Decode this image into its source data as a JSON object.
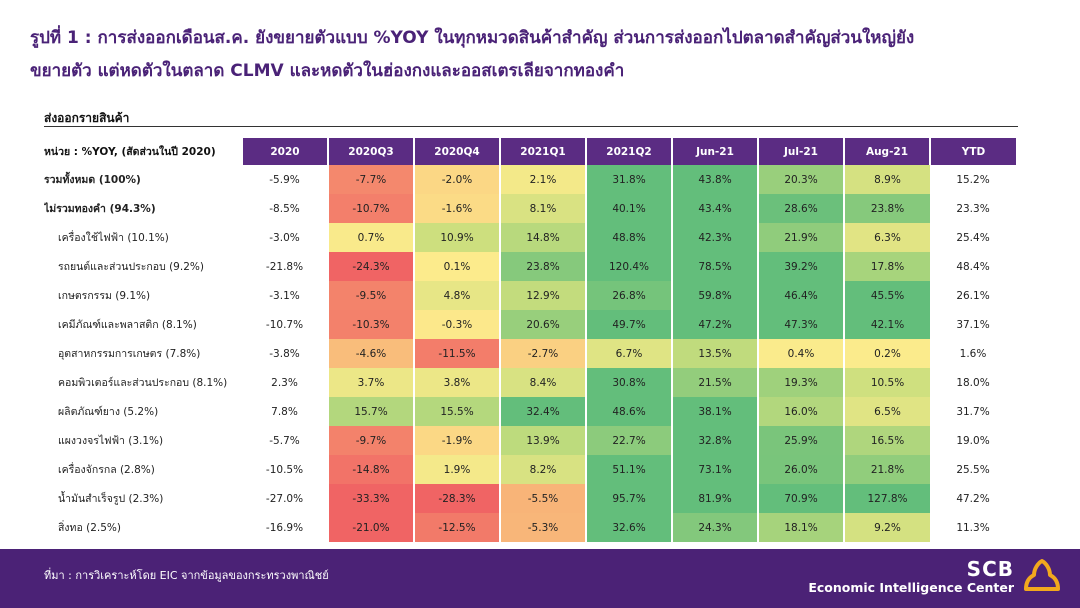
{
  "title": {
    "line1": "รูปที่ 1 : การส่งออกเดือนส.ค. ยังขยายตัวแบบ %YOY ในทุกหมวดสินค้าสำคัญ ส่วนการส่งออกไปตลาดสำคัญส่วนใหญ่ยัง",
    "line2": "ขยายตัว แต่หดตัวในตลาด CLMV และหดตัวในฮ่องกงและออสเตรเลียจากทองคำ"
  },
  "section_label": "ส่งออกรายสินค้า",
  "footer": {
    "source": "ที่มา : การวิเคราะห์โดย EIC จากข้อมูลของกระทรวงพาณิชย์",
    "brand_name": "SCB",
    "brand_sub": "Economic Intelligence Center"
  },
  "colors": {
    "header": "#5b2c83",
    "footer": "#4b2276",
    "title": "#4a2277",
    "logo": "#f2a81d"
  },
  "chart_data": {
    "type": "table",
    "unit_label": "หน่วย : %YOY, (สัดส่วนในปี 2020)",
    "columns": [
      "2020",
      "2020Q3",
      "2020Q4",
      "2021Q1",
      "2021Q2",
      "Jun-21",
      "Jul-21",
      "Aug-21",
      "YTD"
    ],
    "heatmap_columns": [
      "2020Q3",
      "2020Q4",
      "2021Q1",
      "2021Q2",
      "Jun-21",
      "Jul-21",
      "Aug-21"
    ],
    "rows": [
      {
        "label": "รวมทั้งหมด (100%)",
        "bold": true,
        "values": [
          -5.9,
          -7.7,
          -2.0,
          2.1,
          31.8,
          43.8,
          20.3,
          8.9,
          15.2
        ]
      },
      {
        "label": "ไม่รวมทองคำ (94.3%)",
        "bold": true,
        "values": [
          -8.5,
          -10.7,
          -1.6,
          8.1,
          40.1,
          43.4,
          28.6,
          23.8,
          23.3
        ]
      },
      {
        "label": "เครื่องใช้ไฟฟ้า (10.1%)",
        "bold": false,
        "values": [
          -3.0,
          0.7,
          10.9,
          14.8,
          48.8,
          42.3,
          21.9,
          6.3,
          25.4
        ]
      },
      {
        "label": "รถยนต์และส่วนประกอบ (9.2%)",
        "bold": false,
        "values": [
          -21.8,
          -24.3,
          0.1,
          23.8,
          120.4,
          78.5,
          39.2,
          17.8,
          48.4
        ]
      },
      {
        "label": "เกษตรกรรม (9.1%)",
        "bold": false,
        "values": [
          -3.1,
          -9.5,
          4.8,
          12.9,
          26.8,
          59.8,
          46.4,
          45.5,
          26.1
        ]
      },
      {
        "label": "เคมีภัณฑ์และพลาสติก (8.1%)",
        "bold": false,
        "values": [
          -10.7,
          -10.3,
          -0.3,
          20.6,
          49.7,
          47.2,
          47.3,
          42.1,
          37.1
        ]
      },
      {
        "label": "อุตสาหกรรมการเกษตร (7.8%)",
        "bold": false,
        "values": [
          -3.8,
          -4.6,
          -11.5,
          -2.7,
          6.7,
          13.5,
          0.4,
          0.2,
          1.6
        ]
      },
      {
        "label": "คอมพิวเตอร์และส่วนประกอบ (8.1%)",
        "bold": false,
        "values": [
          2.3,
          3.7,
          3.8,
          8.4,
          30.8,
          21.5,
          19.3,
          10.5,
          18.0
        ]
      },
      {
        "label": "ผลิตภัณฑ์ยาง (5.2%)",
        "bold": false,
        "values": [
          7.8,
          15.7,
          15.5,
          32.4,
          48.6,
          38.1,
          16.0,
          6.5,
          31.7
        ]
      },
      {
        "label": "แผงวงจรไฟฟ้า (3.1%)",
        "bold": false,
        "values": [
          -5.7,
          -9.7,
          -1.9,
          13.9,
          22.7,
          32.8,
          25.9,
          16.5,
          19.0
        ]
      },
      {
        "label": "เครื่องจักรกล (2.8%)",
        "bold": false,
        "values": [
          -10.5,
          -14.8,
          1.9,
          8.2,
          51.1,
          73.1,
          26.0,
          21.8,
          25.5
        ]
      },
      {
        "label": "น้ำมันสำเร็จรูป (2.3%)",
        "bold": false,
        "values": [
          -27.0,
          -33.3,
          -28.3,
          -5.5,
          95.7,
          81.9,
          70.9,
          127.8,
          47.2
        ]
      },
      {
        "label": "สิ่งทอ (2.5%)",
        "bold": false,
        "values": [
          -16.9,
          -21.0,
          -12.5,
          -5.3,
          32.6,
          24.3,
          18.1,
          9.2,
          11.3
        ]
      }
    ]
  }
}
